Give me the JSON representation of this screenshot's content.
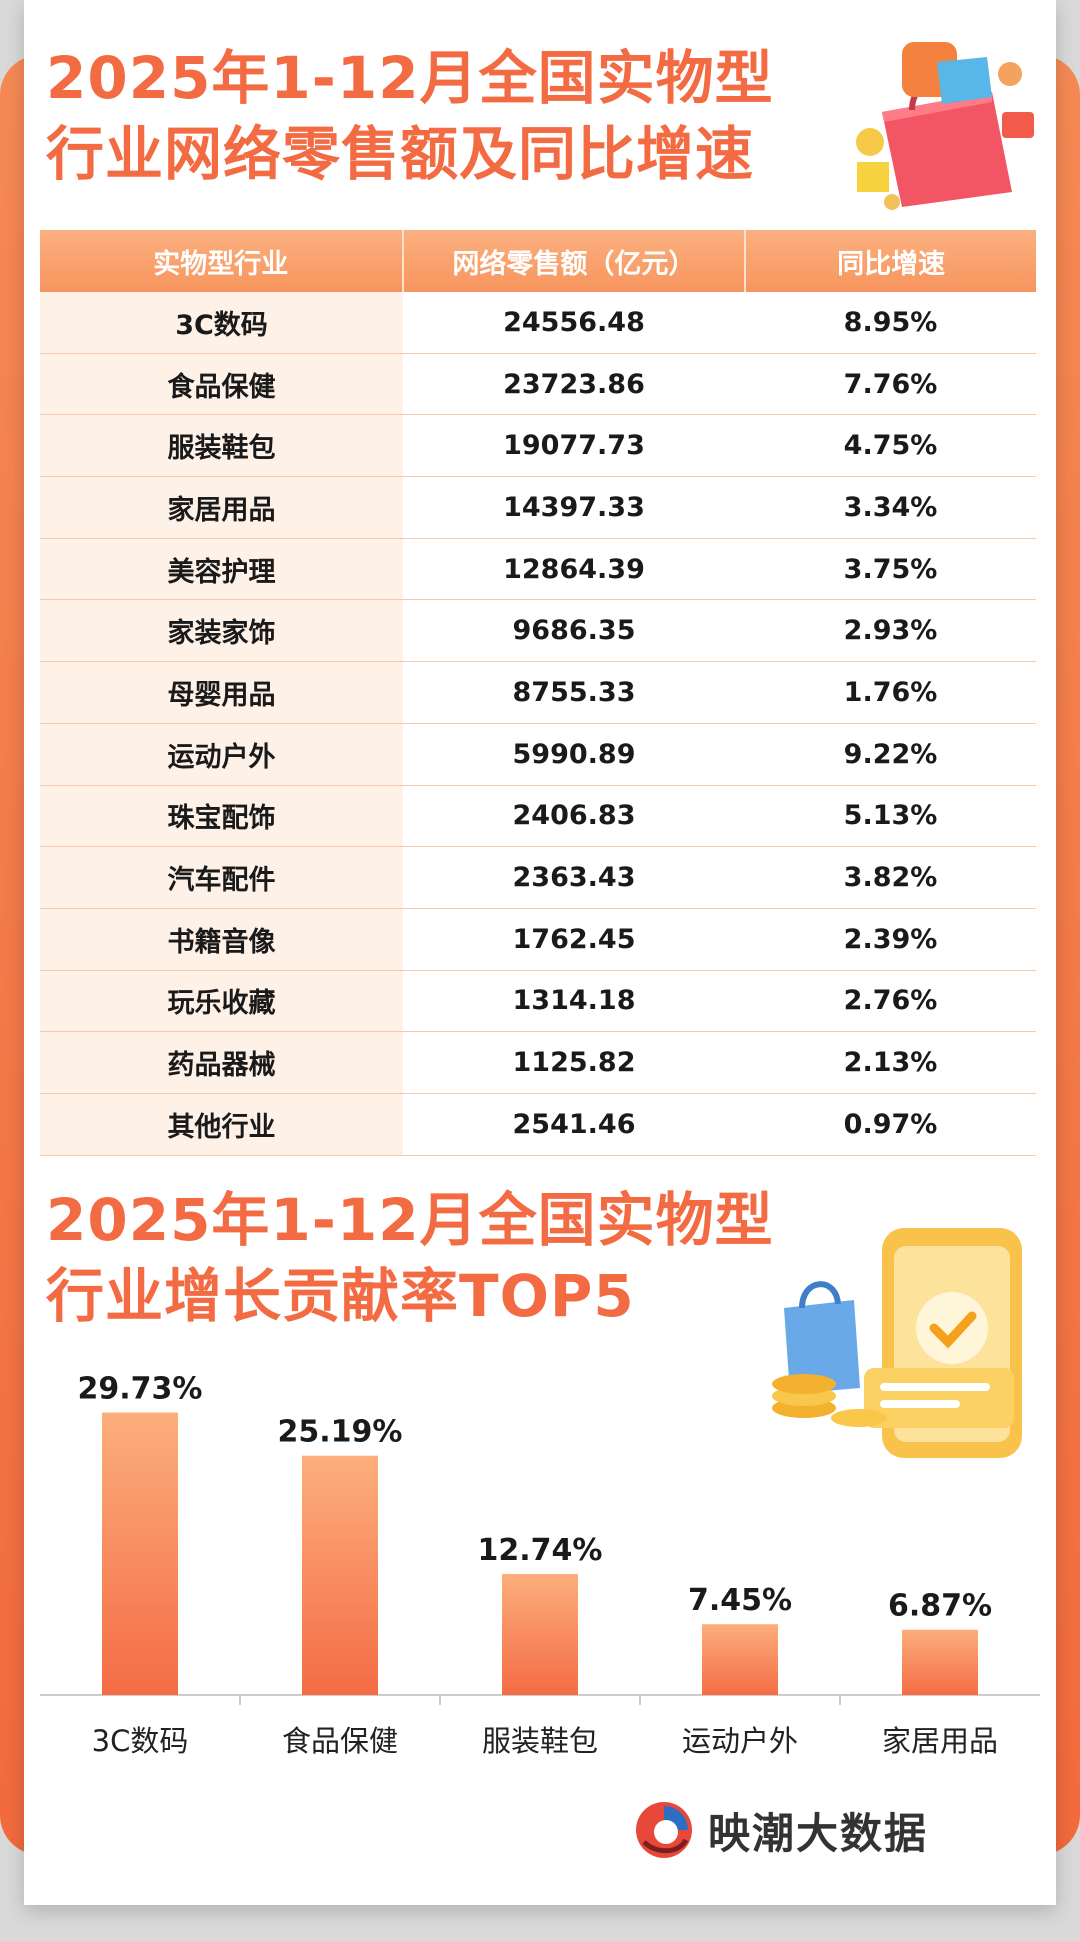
{
  "titles": {
    "table_title_line1": "2025年1-12月全国实物型",
    "table_title_line2": "行业网络零售额及同比增速",
    "chart_title_line1": "2025年1-12月全国实物型",
    "chart_title_line2": "行业增长贡献率TOP5"
  },
  "table": {
    "headers": [
      "实物型行业",
      "网络零售额（亿元）",
      "同比增速"
    ],
    "rows": [
      [
        "3C数码",
        "24556.48",
        "8.95%"
      ],
      [
        "食品保健",
        "23723.86",
        "7.76%"
      ],
      [
        "服装鞋包",
        "19077.73",
        "4.75%"
      ],
      [
        "家居用品",
        "14397.33",
        "3.34%"
      ],
      [
        "美容护理",
        "12864.39",
        "3.75%"
      ],
      [
        "家装家饰",
        "9686.35",
        "2.93%"
      ],
      [
        "母婴用品",
        "8755.33",
        "1.76%"
      ],
      [
        "运动户外",
        "5990.89",
        "9.22%"
      ],
      [
        "珠宝配饰",
        "2406.83",
        "5.13%"
      ],
      [
        "汽车配件",
        "2363.43",
        "3.82%"
      ],
      [
        "书籍音像",
        "1762.45",
        "2.39%"
      ],
      [
        "玩乐收藏",
        "1314.18",
        "2.76%"
      ],
      [
        "药品器械",
        "1125.82",
        "2.13%"
      ],
      [
        "其他行业",
        "2541.46",
        "0.97%"
      ]
    ]
  },
  "chart_data": {
    "type": "bar",
    "title": "2025年1-12月全国实物型行业增长贡献率TOP5",
    "categories": [
      "3C数码",
      "食品保健",
      "服装鞋包",
      "运动户外",
      "家居用品"
    ],
    "values": [
      29.73,
      25.19,
      12.74,
      7.45,
      6.87
    ],
    "value_labels": [
      "29.73%",
      "25.19%",
      "12.74%",
      "7.45%",
      "6.87%"
    ],
    "ylim": [
      0,
      30
    ],
    "grid": false,
    "legend": "none",
    "colors": {
      "bar_top": "#fcae7c",
      "bar_bottom": "#f46c45",
      "axis": "#cccccc"
    }
  },
  "brand": {
    "name": "映潮大数据",
    "logo_icon": "brand-logo-icon"
  },
  "colors": {
    "title": "#f36b43",
    "accent": "#f7955e"
  }
}
